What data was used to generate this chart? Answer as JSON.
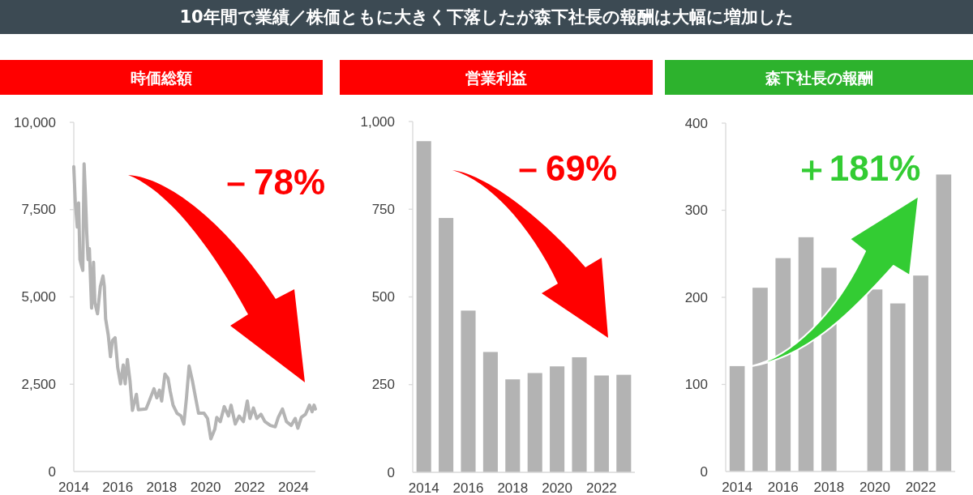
{
  "chart_data": [
    {
      "type": "other",
      "title": "10年間で業績／株価ともに大きく下落したが森下社長の報酬は大幅に増加した"
    },
    {
      "type": "line",
      "title": "時価総額",
      "color": "#b4b4b4",
      "x": [
        2014.0,
        2014.07,
        2014.16,
        2014.22,
        2014.28,
        2014.34,
        2014.41,
        2014.47,
        2014.53,
        2014.59,
        2014.65,
        2014.71,
        2014.81,
        2014.9,
        2014.96,
        2015.08,
        2015.21,
        2015.33,
        2015.39,
        2015.45,
        2015.57,
        2015.67,
        2015.76,
        2015.88,
        2016.0,
        2016.13,
        2016.25,
        2016.34,
        2016.44,
        2016.56,
        2016.67,
        2016.85,
        2016.94,
        2017.29,
        2017.41,
        2017.65,
        2017.78,
        2017.9,
        2018.0,
        2018.15,
        2018.29,
        2018.39,
        2018.52,
        2018.7,
        2018.88,
        2019.01,
        2019.13,
        2019.25,
        2019.4,
        2019.56,
        2019.68,
        2019.93,
        2020.09,
        2020.24,
        2020.42,
        2020.51,
        2020.67,
        2020.85,
        2021.04,
        2021.16,
        2021.35,
        2021.53,
        2021.72,
        2021.9,
        2022.02,
        2022.18,
        2022.33,
        2022.52,
        2022.7,
        2022.95,
        2023.17,
        2023.31,
        2023.5,
        2023.68,
        2023.9,
        2024.08,
        2024.2,
        2024.36,
        2024.55,
        2024.73,
        2024.85,
        2024.94,
        2025.0
      ],
      "values": [
        8730,
        7690,
        7000,
        7690,
        6070,
        5920,
        5760,
        8810,
        7920,
        6840,
        6070,
        6380,
        4680,
        5990,
        4830,
        4520,
        5300,
        5600,
        5300,
        4370,
        3900,
        3290,
        3750,
        3830,
        2980,
        2510,
        3050,
        2510,
        3210,
        2590,
        1750,
        2210,
        1770,
        1790,
        1980,
        2370,
        2110,
        2330,
        2020,
        2790,
        2670,
        2300,
        1900,
        1670,
        1590,
        1360,
        2110,
        3020,
        2600,
        2060,
        1670,
        1670,
        1520,
        935,
        1210,
        1550,
        1430,
        1860,
        1590,
        1900,
        1360,
        1590,
        1430,
        2020,
        1520,
        1820,
        1520,
        1640,
        1430,
        1320,
        1280,
        1550,
        1790,
        1430,
        1320,
        1520,
        1240,
        1550,
        1640,
        1900,
        1710,
        1900,
        1790
      ],
      "xlim": [
        2014,
        2025
      ],
      "xticks": [
        2014,
        2016,
        2018,
        2020,
        2022,
        2024
      ],
      "ylim": [
        0,
        10000
      ],
      "yticks": [
        0,
        {
          "value": 2500,
          "label": "2,500"
        },
        {
          "value": 5000,
          "label": "5,000"
        },
        {
          "value": 7500,
          "label": "7,500"
        },
        {
          "value": 10000,
          "label": "10,000"
        }
      ],
      "annotations": [
        "－78%"
      ]
    },
    {
      "type": "bar",
      "title": "営業利益",
      "color": "#b3b3b3",
      "categories": [
        "2014",
        null,
        "2016",
        null,
        "2018",
        null,
        "2020",
        null,
        "2022",
        null
      ],
      "values": [
        944,
        725,
        461,
        343,
        265,
        283,
        302,
        328,
        276,
        278
      ],
      "ylim": [
        0,
        1000
      ],
      "yticks": [
        0,
        250,
        500,
        750,
        {
          "value": 1000,
          "label": "1,000"
        }
      ],
      "annotations": [
        "－69%"
      ]
    },
    {
      "type": "bar",
      "title": "森下社長の報酬",
      "color": "#b3b3b3",
      "categories": [
        "2014",
        null,
        "2016",
        null,
        "2018",
        null,
        "2020",
        null,
        "2022",
        null
      ],
      "values": [
        121,
        211,
        245,
        269,
        234,
        null,
        209,
        193,
        225,
        341
      ],
      "ylim": [
        0,
        400
      ],
      "yticks": [
        0,
        100,
        200,
        300,
        400
      ],
      "annotations": [
        "＋181%"
      ]
    }
  ]
}
